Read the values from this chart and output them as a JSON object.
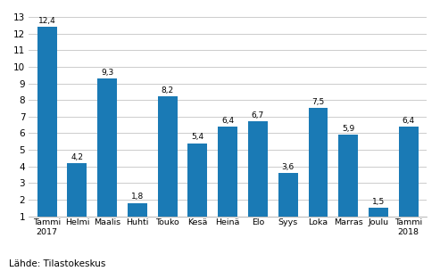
{
  "categories": [
    "Tammi\n2017",
    "Helmi",
    "Maalis",
    "Huhti",
    "Touko",
    "Kesä",
    "Heinä",
    "Elo",
    "Syys",
    "Loka",
    "Marras",
    "Joulu",
    "Tammi\n2018"
  ],
  "values": [
    12.4,
    4.2,
    9.3,
    1.8,
    8.2,
    5.4,
    6.4,
    6.7,
    3.6,
    7.5,
    5.9,
    1.5,
    6.4
  ],
  "bar_color": "#1a7ab5",
  "ymin": 1,
  "ymax": 13,
  "yticks": [
    1,
    2,
    3,
    4,
    5,
    6,
    7,
    8,
    9,
    10,
    11,
    12,
    13
  ],
  "source_text": "Lähde: Tilastokeskus",
  "value_labels": [
    "12,4",
    "4,2",
    "9,3",
    "1,8",
    "8,2",
    "5,4",
    "6,4",
    "6,7",
    "3,6",
    "7,5",
    "5,9",
    "1,5",
    "6,4"
  ],
  "background_color": "#ffffff",
  "grid_color": "#cccccc",
  "bar_width": 0.65
}
